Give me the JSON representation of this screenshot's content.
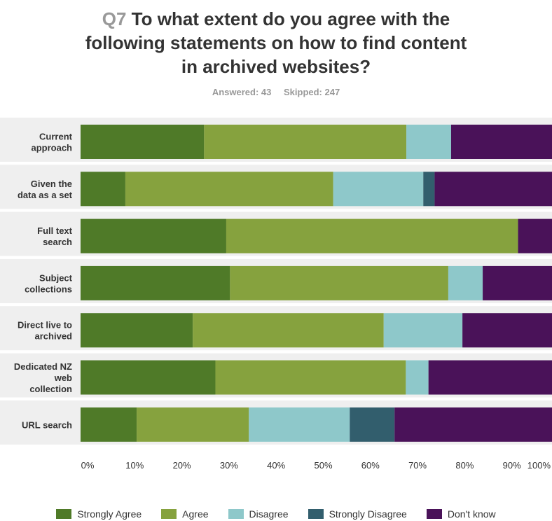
{
  "header": {
    "qnum": "Q7",
    "title_lines": [
      "To what extent do you agree with the",
      "following statements on how to find content",
      "in archived websites?"
    ],
    "answered": "Answered: 43",
    "skipped": "Skipped: 247"
  },
  "chart_data": {
    "type": "bar",
    "orientation": "horizontal",
    "stacked": true,
    "categories": [
      [
        "Current",
        "approach"
      ],
      [
        "Given the",
        "data as a set"
      ],
      [
        "Full text",
        "search"
      ],
      [
        "Subject",
        "collections"
      ],
      [
        "Direct live to",
        "archived"
      ],
      [
        "Dedicated NZ",
        "web",
        "collection"
      ],
      [
        "URL search"
      ]
    ],
    "series": [
      {
        "name": "Strongly Agree",
        "color": "#4f7a28",
        "values": [
          26.2,
          9.5,
          30.9,
          31.7,
          23.8,
          28.6,
          11.9
        ]
      },
      {
        "name": "Agree",
        "color": "#86a23e",
        "values": [
          42.9,
          44.1,
          61.9,
          46.3,
          40.5,
          40.4,
          23.8
        ]
      },
      {
        "name": "Disagree",
        "color": "#8ec8ca",
        "values": [
          9.5,
          19.1,
          0,
          7.3,
          16.7,
          4.8,
          21.4
        ]
      },
      {
        "name": "Strongly Disagree",
        "color": "#325e6d",
        "values": [
          0,
          2.4,
          0,
          0,
          0,
          0,
          9.5
        ]
      },
      {
        "name": "Don't know",
        "color": "#4a1259",
        "values": [
          21.4,
          24.9,
          7.2,
          14.7,
          19.0,
          26.2,
          33.4
        ]
      }
    ],
    "x_ticks": [
      "0%",
      "10%",
      "20%",
      "30%",
      "40%",
      "50%",
      "60%",
      "70%",
      "80%",
      "90%",
      "100%"
    ],
    "xlim": [
      0,
      100
    ],
    "legend_position": "bottom",
    "band_color": "#efefef"
  }
}
